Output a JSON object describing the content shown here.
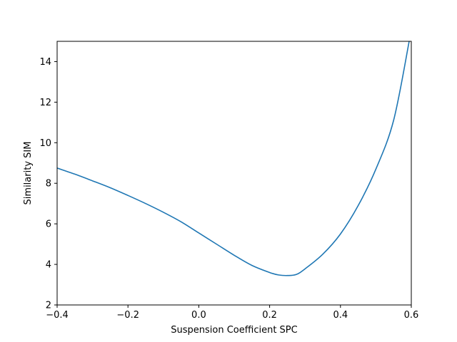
{
  "chart_data": {
    "type": "line",
    "title": "",
    "xlabel": "Suspension Coefficient SPC",
    "ylabel": "Similarity SIM",
    "xlim": [
      -0.4,
      0.6
    ],
    "ylim": [
      2,
      15
    ],
    "grid": false,
    "xticks": [
      -0.4,
      -0.2,
      0.0,
      0.2,
      0.4,
      0.6
    ],
    "xtick_labels": [
      "−0.4",
      "−0.2",
      "0.0",
      "0.2",
      "0.4",
      "0.6"
    ],
    "yticks": [
      2,
      4,
      6,
      8,
      10,
      12,
      14
    ],
    "ytick_labels": [
      "2",
      "4",
      "6",
      "8",
      "10",
      "12",
      "14"
    ],
    "series": [
      {
        "color": "#1f77b4",
        "x": [
          -0.4,
          -0.35,
          -0.3,
          -0.25,
          -0.2,
          -0.15,
          -0.1,
          -0.05,
          0.0,
          0.05,
          0.1,
          0.15,
          0.2,
          0.225,
          0.25,
          0.275,
          0.3,
          0.35,
          0.4,
          0.45,
          0.5,
          0.55,
          0.594
        ],
        "y": [
          8.75,
          8.45,
          8.12,
          7.78,
          7.4,
          7.0,
          6.57,
          6.1,
          5.55,
          5.0,
          4.45,
          3.95,
          3.6,
          3.48,
          3.45,
          3.5,
          3.78,
          4.5,
          5.5,
          6.9,
          8.7,
          11.1,
          15.0
        ]
      }
    ]
  }
}
